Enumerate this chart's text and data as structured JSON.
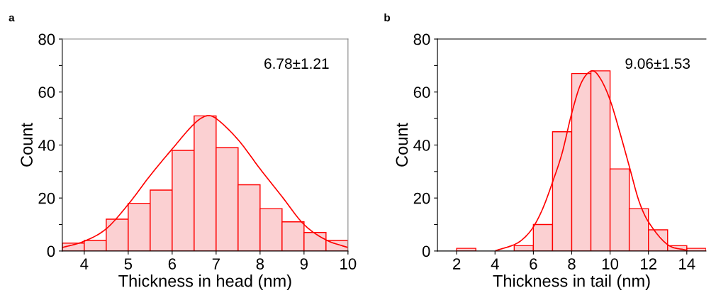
{
  "chart_data": [
    {
      "type": "histogram",
      "title": "a",
      "xlabel": "Thickness in head (nm)",
      "ylabel": "Count",
      "xlim": [
        3.5,
        10
      ],
      "xticks": [
        4,
        5,
        6,
        7,
        8,
        9,
        10
      ],
      "ylim": [
        0,
        80
      ],
      "yticks": [
        0,
        {
          "value": 10,
          "label": null
        },
        20,
        {
          "value": 30,
          "label": null
        },
        40,
        {
          "value": 50,
          "label": null
        },
        60,
        {
          "value": 70,
          "label": null
        },
        80
      ],
      "annotations": [
        "6.78±1.21"
      ],
      "grid": false,
      "series": [
        {
          "color": "#fbd0d2",
          "bins": [
            3.5,
            4,
            4.5,
            5,
            5.5,
            6,
            6.5,
            7,
            7.5,
            8,
            8.5,
            9,
            9.5,
            10
          ],
          "values": [
            3,
            4,
            12,
            18,
            23,
            38,
            51,
            39,
            25,
            16,
            11,
            7,
            4
          ]
        },
        {
          "type": "line",
          "color": "#ff0000",
          "x": [
            3.5,
            4,
            4.5,
            5,
            5.5,
            6,
            6.5,
            6.78,
            7,
            7.5,
            8,
            8.5,
            9,
            9.5,
            10
          ],
          "values": [
            1.3,
            3.7,
            8.4,
            17.6,
            28.5,
            38.5,
            48,
            51,
            50,
            42,
            31,
            20.5,
            10,
            4.2,
            1.3
          ]
        }
      ]
    },
    {
      "type": "histogram",
      "title": "b",
      "xlabel": "Thickness in tail (nm)",
      "ylabel": "Count",
      "xlim": [
        1,
        15
      ],
      "xticks": [
        2,
        4,
        6,
        8,
        10,
        12,
        14
      ],
      "ylim": [
        0,
        80
      ],
      "yticks": [
        0,
        {
          "value": 10,
          "label": null
        },
        20,
        {
          "value": 30,
          "label": null
        },
        40,
        {
          "value": 50,
          "label": null
        },
        60,
        {
          "value": 70,
          "label": null
        },
        80
      ],
      "annotations": [
        "9.06±1.53"
      ],
      "grid": false,
      "series": [
        {
          "color": "#fbd0d2",
          "bins": [
            2,
            3,
            4,
            5,
            6,
            7,
            8,
            9,
            10,
            11,
            12,
            13,
            14,
            15
          ],
          "values": [
            1,
            0,
            0,
            2,
            10,
            45,
            67,
            68,
            31,
            16,
            8,
            2,
            1
          ]
        },
        {
          "type": "line",
          "color": "#ff0000",
          "x": [
            4.05,
            5,
            5.5,
            6,
            6.5,
            7,
            7.5,
            8,
            8.5,
            9.06,
            9.5,
            10,
            10.5,
            11,
            11.5,
            12,
            13,
            14
          ],
          "values": [
            0.2,
            2.4,
            4.8,
            9.1,
            16.2,
            26,
            37,
            52,
            63.5,
            68,
            65,
            57,
            45,
            32,
            19,
            11,
            2.4,
            0.3
          ]
        }
      ]
    }
  ]
}
